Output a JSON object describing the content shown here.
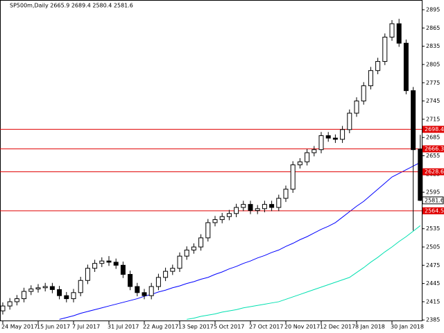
{
  "chart_data": {
    "type": "candlestick",
    "title": "SP500m,Daily  2665.9 2689.4 2580.4 2581.6",
    "categories": [
      "24 May 2017",
      null,
      null,
      null,
      null,
      "15 Jun 2017",
      null,
      null,
      null,
      null,
      "7 Jul 2017",
      null,
      null,
      null,
      null,
      "31 Jul 2017",
      null,
      null,
      null,
      null,
      "22 Aug 2017",
      null,
      null,
      null,
      null,
      "13 Sep 2017",
      null,
      null,
      null,
      null,
      "5 Oct 2017",
      null,
      null,
      null,
      null,
      "27 Oct 2017",
      null,
      null,
      null,
      null,
      "20 Nov 2017",
      null,
      null,
      null,
      null,
      "12 Dec 2017",
      null,
      null,
      null,
      null,
      "8 Jan 2018",
      null,
      null,
      null,
      null,
      "30 Jan 2018",
      null,
      null,
      null,
      null
    ],
    "open": [
      2400,
      2408,
      2415,
      2420,
      2432,
      2436,
      2438,
      2440,
      2435,
      2425,
      2420,
      2430,
      2450,
      2470,
      2478,
      2482,
      2480,
      2475,
      2460,
      2440,
      2430,
      2425,
      2440,
      2455,
      2465,
      2470,
      2490,
      2500,
      2505,
      2520,
      2545,
      2550,
      2555,
      2560,
      2570,
      2575,
      2565,
      2568,
      2575,
      2570,
      2585,
      2600,
      2640,
      2645,
      2660,
      2665,
      2688,
      2684,
      2682,
      2698,
      2725,
      2745,
      2770,
      2795,
      2810,
      2850,
      2872,
      2840,
      2762,
      2665.9
    ],
    "high": [
      2414,
      2421,
      2426,
      2438,
      2442,
      2444,
      2446,
      2446,
      2441,
      2431,
      2436,
      2456,
      2476,
      2484,
      2488,
      2490,
      2486,
      2481,
      2466,
      2446,
      2436,
      2446,
      2461,
      2471,
      2476,
      2496,
      2506,
      2511,
      2526,
      2551,
      2556,
      2561,
      2566,
      2576,
      2581,
      2581,
      2574,
      2581,
      2581,
      2591,
      2606,
      2646,
      2651,
      2666,
      2671,
      2694,
      2694,
      2690,
      2704,
      2731,
      2751,
      2776,
      2801,
      2816,
      2856,
      2878,
      2880,
      2846,
      2768,
      2689.4
    ],
    "low": [
      2394,
      2402,
      2409,
      2414,
      2426,
      2430,
      2432,
      2429,
      2419,
      2414,
      2414,
      2424,
      2444,
      2464,
      2472,
      2474,
      2469,
      2454,
      2434,
      2424,
      2419,
      2419,
      2434,
      2449,
      2459,
      2464,
      2484,
      2494,
      2499,
      2514,
      2539,
      2544,
      2549,
      2554,
      2564,
      2559,
      2559,
      2562,
      2564,
      2564,
      2579,
      2594,
      2634,
      2639,
      2654,
      2659,
      2678,
      2676,
      2676,
      2692,
      2719,
      2739,
      2764,
      2789,
      2804,
      2844,
      2834,
      2756,
      2532,
      2580.4
    ],
    "close": [
      2408,
      2415,
      2420,
      2432,
      2436,
      2438,
      2440,
      2435,
      2425,
      2420,
      2430,
      2450,
      2470,
      2478,
      2482,
      2480,
      2475,
      2460,
      2440,
      2430,
      2425,
      2440,
      2455,
      2465,
      2470,
      2490,
      2500,
      2505,
      2520,
      2545,
      2550,
      2555,
      2560,
      2570,
      2575,
      2565,
      2568,
      2575,
      2570,
      2585,
      2600,
      2640,
      2645,
      2660,
      2665,
      2688,
      2684,
      2682,
      2698,
      2725,
      2745,
      2770,
      2795,
      2810,
      2850,
      2872,
      2840,
      2762,
      2665,
      2581.6
    ],
    "moving_averages": [
      {
        "color": "#0000ff",
        "values": [
          null,
          null,
          null,
          null,
          null,
          null,
          null,
          null,
          2386,
          2389,
          2392,
          2396,
          2399,
          2402,
          2405,
          2408,
          2411,
          2414,
          2417,
          2420,
          2424,
          2427,
          2431,
          2434,
          2438,
          2441,
          2445,
          2448,
          2452,
          2455,
          2460,
          2464,
          2469,
          2473,
          2478,
          2482,
          2487,
          2491,
          2496,
          2500,
          2506,
          2511,
          2517,
          2522,
          2528,
          2534,
          2539,
          2545,
          2554,
          2563,
          2572,
          2580,
          2590,
          2600,
          2610,
          2620,
          2626,
          2632,
          2638,
          2644
        ]
      },
      {
        "color": "#00e0b0",
        "values": [
          null,
          null,
          null,
          null,
          null,
          null,
          null,
          null,
          null,
          null,
          null,
          null,
          null,
          null,
          null,
          null,
          null,
          null,
          null,
          null,
          null,
          null,
          null,
          null,
          null,
          null,
          2386,
          2388,
          2391,
          2393,
          2395,
          2398,
          2400,
          2402,
          2405,
          2407,
          2409,
          2411,
          2413,
          2415,
          2419,
          2423,
          2427,
          2431,
          2435,
          2439,
          2443,
          2447,
          2451,
          2455,
          2463,
          2471,
          2480,
          2488,
          2497,
          2505,
          2514,
          2522,
          2531,
          2540
        ]
      }
    ],
    "levels": [
      2698.4,
      2666.3,
      2628.6,
      2564.5
    ],
    "level_color": "#e00000",
    "last_price": 2581.6,
    "up_color": "#ffffff",
    "down_color": "#000000",
    "ylim": [
      2383,
      2911
    ],
    "yticks": [
      2385,
      2415,
      2445,
      2475,
      2505,
      2535,
      2565,
      2595,
      2625,
      2655,
      2685,
      2715,
      2745,
      2775,
      2805,
      2835,
      2865,
      2895
    ],
    "grid": false
  }
}
